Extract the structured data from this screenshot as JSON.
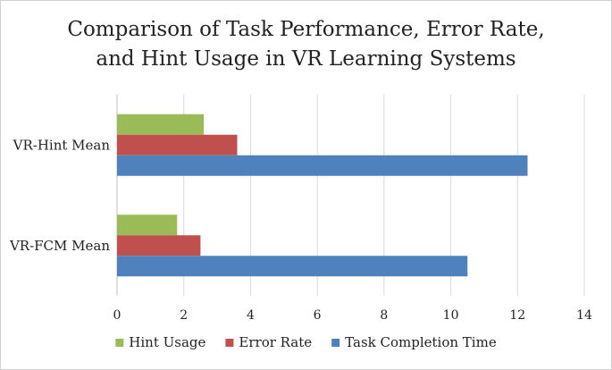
{
  "chart_data": {
    "type": "bar",
    "orientation": "horizontal",
    "title": "Comparison of Task Performance, Error Rate,\nand Hint Usage in VR Learning Systems",
    "categories": [
      "VR-Hint Mean",
      "VR-FCM Mean"
    ],
    "series": [
      {
        "name": "Hint Usage",
        "color": "#9BBB59",
        "values": [
          2.6,
          1.8
        ]
      },
      {
        "name": "Error Rate",
        "color": "#C0504D",
        "values": [
          3.6,
          2.5
        ]
      },
      {
        "name": "Task Completion Time",
        "color": "#4F81BD",
        "values": [
          12.3,
          10.5
        ]
      }
    ],
    "xticks": [
      "0",
      "2",
      "4",
      "6",
      "8",
      "10",
      "12",
      "14"
    ],
    "xlim": [
      0,
      14
    ],
    "grid": "vertical",
    "legend_position": "bottom"
  }
}
